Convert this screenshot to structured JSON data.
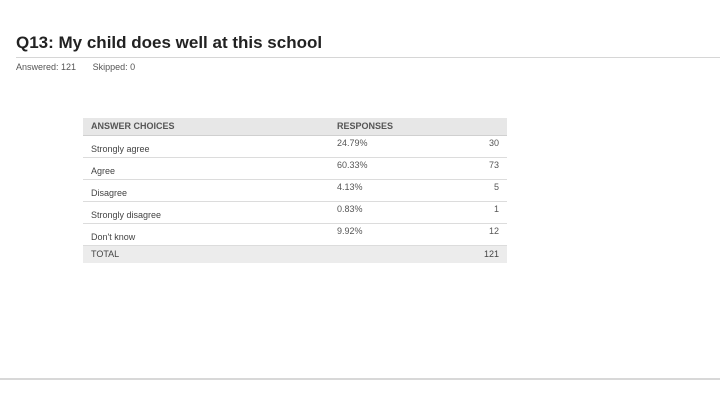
{
  "question": {
    "title": "Q13: My child does well at this school",
    "answered": "Answered: 121",
    "skipped": "Skipped: 0"
  },
  "table": {
    "headers": {
      "choice": "ANSWER CHOICES",
      "responses": "RESPONSES"
    },
    "total_label": "TOTAL",
    "total_count": "121"
  },
  "chart_data": {
    "type": "table",
    "title": "Q13: My child does well at this school",
    "columns": [
      "ANSWER CHOICES",
      "RESPONSES",
      ""
    ],
    "rows": [
      {
        "choice": "Strongly agree",
        "percent": "24.79%",
        "count": "30"
      },
      {
        "choice": "Agree",
        "percent": "60.33%",
        "count": "73"
      },
      {
        "choice": "Disagree",
        "percent": "4.13%",
        "count": "5"
      },
      {
        "choice": "Strongly disagree",
        "percent": "0.83%",
        "count": "1"
      },
      {
        "choice": "Don't know",
        "percent": "9.92%",
        "count": "12"
      }
    ],
    "total": {
      "label": "TOTAL",
      "count": "121"
    }
  }
}
